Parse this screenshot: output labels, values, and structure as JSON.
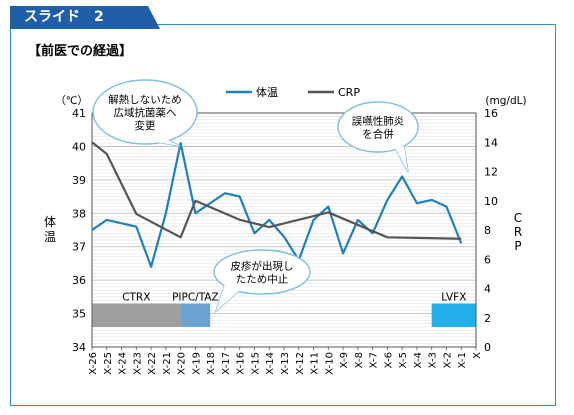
{
  "header": {
    "tab_label": "スライド　2",
    "section_title": "【前医での経過】"
  },
  "chart_data": {
    "type": "line",
    "title": "",
    "categories": [
      "X-26",
      "X-25",
      "X-24",
      "X-23",
      "X-22",
      "X-21",
      "X-20",
      "X-19",
      "X-18",
      "X-17",
      "X-16",
      "X-15",
      "X-14",
      "X-13",
      "X-12",
      "X-11",
      "X-10",
      "X-9",
      "X-8",
      "X-7",
      "X-6",
      "X-5",
      "X-4",
      "X-3",
      "X-2",
      "X-1",
      "X"
    ],
    "left_axis": {
      "unit": "（℃）",
      "label_chars": [
        "体",
        "温"
      ],
      "ylim": [
        34,
        41
      ],
      "ticks": [
        34,
        35,
        36,
        37,
        38,
        39,
        40,
        41
      ]
    },
    "right_axis": {
      "unit": "(mg/dL)",
      "label_chars": [
        "C",
        "R",
        "P"
      ],
      "ylim": [
        0,
        16
      ],
      "ticks": [
        0,
        2,
        4,
        6,
        8,
        10,
        12,
        14,
        16
      ]
    },
    "legend": {
      "position": "top-center",
      "entries": [
        "体温",
        "CRP"
      ]
    },
    "series": [
      {
        "name": "体温",
        "axis": "left",
        "color": "#1e7fc1",
        "values": [
          37.5,
          37.8,
          37.7,
          37.6,
          36.4,
          38.0,
          40.1,
          38.0,
          38.3,
          38.6,
          38.5,
          37.4,
          37.8,
          37.3,
          36.6,
          37.8,
          38.2,
          36.8,
          37.8,
          37.4,
          38.4,
          39.1,
          38.3,
          38.4,
          38.2,
          37.1,
          null
        ]
      },
      {
        "name": "CRP",
        "axis": "right",
        "color": "#555555",
        "values": [
          14.0,
          13.2,
          null,
          9.1,
          null,
          null,
          7.5,
          10.0,
          null,
          null,
          8.7,
          null,
          8.2,
          null,
          null,
          null,
          9.2,
          null,
          null,
          null,
          7.5,
          null,
          null,
          null,
          null,
          7.4,
          null
        ]
      }
    ],
    "drug_bars": [
      {
        "label": "CTRX",
        "start": "X-26",
        "end": "X-20",
        "color": "#9e9e9e"
      },
      {
        "label": "PIPC/TAZ",
        "start": "X-20",
        "end": "X-18",
        "color": "#6aa3cf"
      },
      {
        "label": "LVFX",
        "start": "X-3",
        "end": "X",
        "color": "#22b0e8"
      }
    ],
    "callouts": [
      {
        "lines": [
          "解熱しないため",
          "広域抗菌薬へ",
          "変更"
        ]
      },
      {
        "lines": [
          "皮疹が出現し",
          "たため中止"
        ]
      },
      {
        "lines": [
          "誤嚥性肺炎",
          "を合併"
        ]
      }
    ],
    "grid": true
  }
}
